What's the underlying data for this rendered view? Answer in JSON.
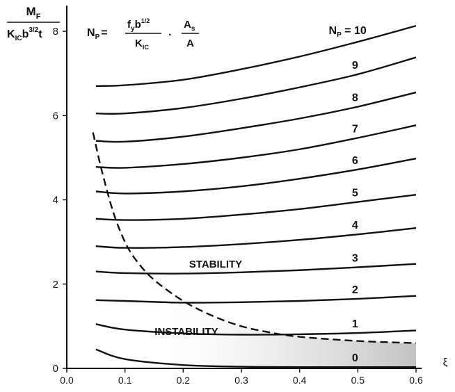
{
  "chart_data": {
    "type": "line",
    "xlabel": "ξ",
    "ylabel": {
      "numerator": "M",
      "numerator_sub": "F",
      "den_k": "K",
      "den_k_sub": "IC",
      "den_b": "b",
      "den_b_sup": "3/2",
      "den_t": "t"
    },
    "formula": {
      "np": "N",
      "np_sub": "P",
      "equals": "=",
      "fy": "f",
      "fy_sub": "y",
      "b": "b",
      "b_sup": "1/2",
      "kic": "K",
      "kic_sub": "IC",
      "dot": "·",
      "as": "A",
      "as_sub": "s",
      "a": "A"
    },
    "xlim": [
      0.0,
      0.6
    ],
    "ylim": [
      0,
      8.6
    ],
    "x_ticks": [
      "0.0",
      "0.1",
      "0.2",
      "0.3",
      "0.4",
      "0.5",
      "0.6"
    ],
    "y_ticks": [
      "0",
      "2",
      "4",
      "6",
      "8"
    ],
    "series": [
      {
        "name": "0",
        "x": [
          0.05,
          0.1,
          0.2,
          0.3,
          0.4,
          0.5,
          0.6
        ],
        "y": [
          0.45,
          0.22,
          0.08,
          0.04,
          0.03,
          0.03,
          0.03
        ]
      },
      {
        "name": "1",
        "x": [
          0.05,
          0.1,
          0.2,
          0.3,
          0.4,
          0.5,
          0.6
        ],
        "y": [
          1.05,
          0.92,
          0.83,
          0.8,
          0.81,
          0.84,
          0.9
        ]
      },
      {
        "name": "2",
        "x": [
          0.05,
          0.1,
          0.2,
          0.3,
          0.4,
          0.5,
          0.6
        ],
        "y": [
          1.62,
          1.6,
          1.56,
          1.57,
          1.6,
          1.65,
          1.72
        ]
      },
      {
        "name": "3",
        "x": [
          0.05,
          0.1,
          0.2,
          0.3,
          0.4,
          0.5,
          0.6
        ],
        "y": [
          2.3,
          2.26,
          2.25,
          2.28,
          2.33,
          2.4,
          2.48
        ]
      },
      {
        "name": "4",
        "x": [
          0.05,
          0.1,
          0.2,
          0.3,
          0.4,
          0.5,
          0.6
        ],
        "y": [
          2.9,
          2.86,
          2.88,
          2.95,
          3.05,
          3.18,
          3.33
        ]
      },
      {
        "name": "5",
        "x": [
          0.05,
          0.1,
          0.2,
          0.3,
          0.4,
          0.5,
          0.6
        ],
        "y": [
          3.55,
          3.52,
          3.55,
          3.65,
          3.78,
          3.95,
          4.12
        ]
      },
      {
        "name": "6",
        "x": [
          0.05,
          0.1,
          0.2,
          0.3,
          0.4,
          0.5,
          0.6
        ],
        "y": [
          4.2,
          4.15,
          4.2,
          4.32,
          4.5,
          4.72,
          4.98
        ]
      },
      {
        "name": "7",
        "x": [
          0.05,
          0.1,
          0.2,
          0.3,
          0.4,
          0.5,
          0.6
        ],
        "y": [
          4.78,
          4.76,
          4.85,
          5.0,
          5.2,
          5.47,
          5.77
        ]
      },
      {
        "name": "8",
        "x": [
          0.05,
          0.1,
          0.2,
          0.3,
          0.4,
          0.5,
          0.6
        ],
        "y": [
          5.4,
          5.38,
          5.5,
          5.7,
          5.93,
          6.21,
          6.55
        ]
      },
      {
        "name": "9",
        "x": [
          0.05,
          0.1,
          0.2,
          0.3,
          0.4,
          0.5,
          0.6
        ],
        "y": [
          6.05,
          6.05,
          6.18,
          6.4,
          6.67,
          6.98,
          7.38
        ]
      },
      {
        "name": "10",
        "x": [
          0.05,
          0.1,
          0.2,
          0.3,
          0.4,
          0.5,
          0.6
        ],
        "y": [
          6.7,
          6.72,
          6.85,
          7.1,
          7.4,
          7.75,
          8.13
        ]
      }
    ],
    "curve_labels": [
      {
        "text": "N",
        "sub": "P",
        "rest": " = 10",
        "series": "10"
      },
      {
        "text": "9",
        "series": "9"
      },
      {
        "text": "8",
        "series": "8"
      },
      {
        "text": "7",
        "series": "7"
      },
      {
        "text": "6",
        "series": "6"
      },
      {
        "text": "5",
        "series": "5"
      },
      {
        "text": "4",
        "series": "4"
      },
      {
        "text": "3",
        "series": "3"
      },
      {
        "text": "2",
        "series": "2"
      },
      {
        "text": "1",
        "series": "1"
      },
      {
        "text": "0",
        "series": "0"
      }
    ],
    "boundary": {
      "x": [
        0.045,
        0.06,
        0.08,
        0.1,
        0.12,
        0.15,
        0.2,
        0.25,
        0.3,
        0.35,
        0.4,
        0.5,
        0.6
      ],
      "y": [
        5.6,
        4.7,
        3.7,
        3.0,
        2.55,
        2.1,
        1.6,
        1.25,
        1.0,
        0.85,
        0.75,
        0.65,
        0.6
      ]
    },
    "region_labels": {
      "stability": "STABILITY",
      "instability": "INSTABILITY"
    }
  }
}
